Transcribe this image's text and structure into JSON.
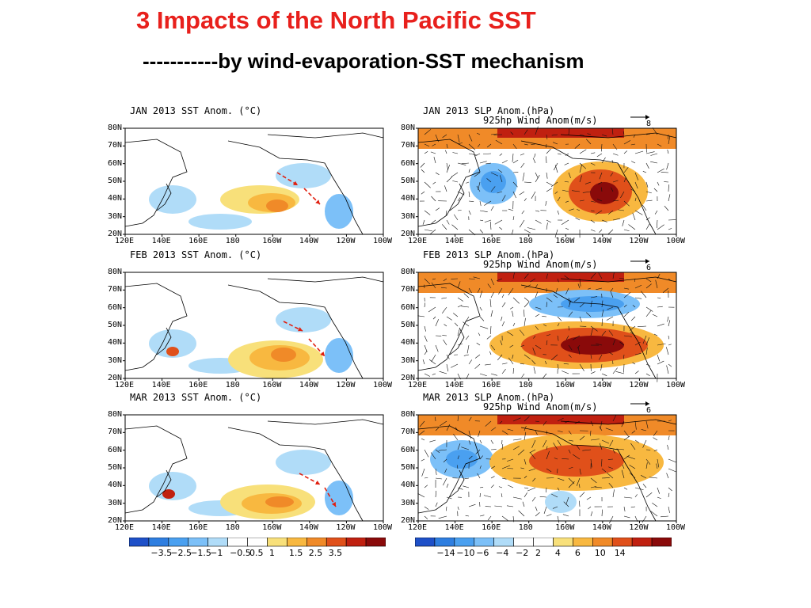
{
  "slide": {
    "title": "3 Impacts of the North Pacific SST",
    "subtitle": "-----------by wind-evaporation-SST mechanism"
  },
  "sst_panels": [
    {
      "title": "JAN 2013 SST Anom. (°C)"
    },
    {
      "title": "FEB 2013 SST Anom. (°C)"
    },
    {
      "title": "MAR 2013 SST Anom. (°C)"
    }
  ],
  "slp_panels": [
    {
      "title": "JAN 2013 SLP Anom.(hPa)",
      "subtitle": "925hp Wind Anom(m/s)",
      "ref_vector": "8"
    },
    {
      "title": "FEB 2013 SLP Anom.(hPa)",
      "subtitle": "925hp Wind Anom(m/s)",
      "ref_vector": "6"
    },
    {
      "title": "MAR 2013 SLP Anom.(hPa)",
      "subtitle": "925hp Wind Anom(m/s)",
      "ref_vector": "6"
    }
  ],
  "axes": {
    "y_ticks": [
      "80N",
      "70N",
      "60N",
      "50N",
      "40N",
      "30N",
      "20N"
    ],
    "x_ticks": [
      "120E",
      "140E",
      "160E",
      "180",
      "160W",
      "140W",
      "120W",
      "100W"
    ]
  },
  "sst_colorbar": {
    "labels": [
      "−3.5",
      "−2.5",
      "−1.5",
      "−1",
      "−0.5",
      "0.5",
      "1",
      "1.5",
      "2.5",
      "3.5"
    ],
    "colors": [
      "#1e50c8",
      "#2e7ee0",
      "#4aa0f0",
      "#7cc0f8",
      "#b0dcf8",
      "#ffffff",
      "#ffffff",
      "#f8e07a",
      "#f8b840",
      "#f08a28",
      "#e0501a",
      "#c02010",
      "#8a0a0a"
    ]
  },
  "slp_colorbar": {
    "labels": [
      "−14",
      "−10",
      "−6",
      "−4",
      "−2",
      "2",
      "4",
      "6",
      "10",
      "14"
    ],
    "colors": [
      "#1e50c8",
      "#2e7ee0",
      "#4aa0f0",
      "#7cc0f8",
      "#b0dcf8",
      "#ffffff",
      "#ffffff",
      "#f8e07a",
      "#f8b840",
      "#f08a28",
      "#e0501a",
      "#c02010",
      "#8a0a0a"
    ]
  }
}
